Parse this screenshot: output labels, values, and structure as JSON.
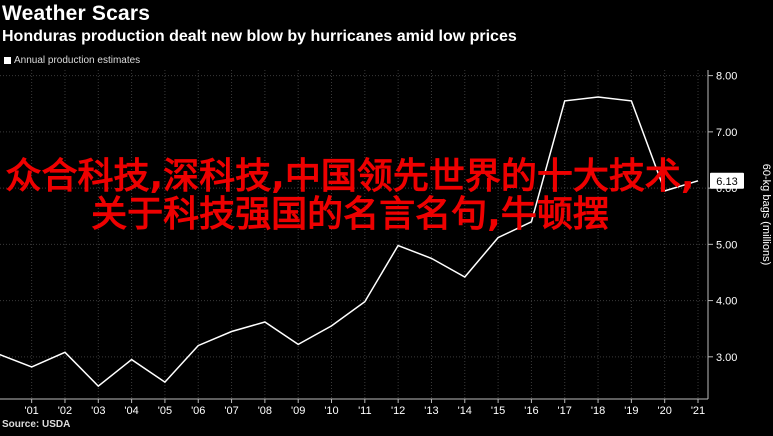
{
  "header": {
    "title": "Weather Scars",
    "subtitle": "Honduras production dealt new blow by hurricanes amid low prices"
  },
  "legend": {
    "label": "Annual production estimates"
  },
  "source": "Source: USDA",
  "overlay_text": "众合科技,深科技,中国领先世界的十大技术,关于科技强国的名言名句,牛顿摆",
  "colors": {
    "background": "#000000",
    "line": "#ffffff",
    "grid": "#3a3a3a",
    "overlay": "#ee0000"
  },
  "chart_data": {
    "type": "line",
    "title": "Weather Scars",
    "subtitle": "Honduras production dealt new blow by hurricanes amid low prices",
    "ylabel": "60-kg bags (millions)",
    "ylim": [
      2.25,
      8.1
    ],
    "yticks": [
      3.0,
      4.0,
      5.0,
      6.0,
      7.0,
      8.0
    ],
    "ytick_labels": [
      "3.00",
      "4.00",
      "5.00",
      "6.00",
      "7.00",
      "8.00"
    ],
    "categories": [
      "'01",
      "'02",
      "'03",
      "'04",
      "'05",
      "'06",
      "'07",
      "'08",
      "'09",
      "'10",
      "'11",
      "'12",
      "'13",
      "'14",
      "'15",
      "'16",
      "'17",
      "'18",
      "'19",
      "'20",
      "'21"
    ],
    "x_positions": [
      2001,
      2002,
      2003,
      2004,
      2005,
      2006,
      2007,
      2008,
      2009,
      2010,
      2011,
      2012,
      2013,
      2014,
      2015,
      2016,
      2017,
      2018,
      2019,
      2020,
      2021
    ],
    "xlim": [
      2000.05,
      2021.3
    ],
    "series": [
      {
        "x": [
          2000,
          2001,
          2002,
          2003,
          2004,
          2005,
          2006,
          2007,
          2008,
          2009,
          2010,
          2011,
          2012,
          2013,
          2014,
          2015,
          2016,
          2017,
          2018,
          2019,
          2020,
          2021
        ],
        "values": [
          3.05,
          2.82,
          3.08,
          2.48,
          2.95,
          2.55,
          3.2,
          3.45,
          3.62,
          3.22,
          3.55,
          3.98,
          4.98,
          4.75,
          4.42,
          5.12,
          5.4,
          7.55,
          7.62,
          7.55,
          5.95,
          6.13
        ]
      }
    ],
    "last_value_label": "6.13",
    "grid": true
  }
}
